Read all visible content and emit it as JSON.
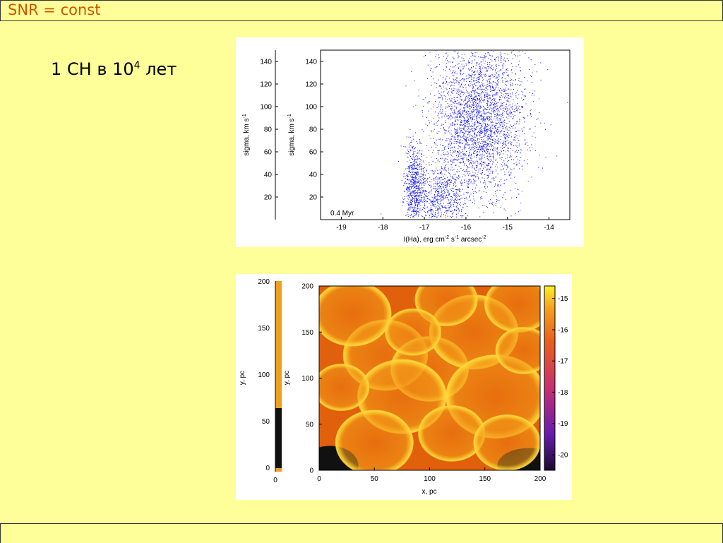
{
  "header": {
    "title": "SNR = const"
  },
  "caption": {
    "text_main": "1 СН в 10",
    "text_sup": "4",
    "text_tail": " лет"
  },
  "chart_data": [
    {
      "type": "scatter",
      "panel_label": "0.4 Myr",
      "xlabel": "I(Ha), erg cm",
      "xlabel_sup1": "-2",
      "xlabel_mid": " s",
      "xlabel_sup2": "-1",
      "xlabel_tail": " arcsec",
      "xlabel_sup3": "-2",
      "ylabel": "sigma, km s",
      "ylabel_sup": "-1",
      "xlim": [
        -19.5,
        -13.5
      ],
      "ylim": [
        0,
        150
      ],
      "xticks": [
        -19,
        -18,
        -17,
        -16,
        -15,
        -14
      ],
      "yticks": [
        20,
        40,
        60,
        80,
        100,
        120,
        140
      ],
      "color": "#1a1aff",
      "clusters": [
        {
          "x_center": -15.7,
          "x_spread": 0.55,
          "y_center": 90,
          "y_spread": 35,
          "count": 3200
        },
        {
          "x_center": -17.25,
          "x_spread": 0.12,
          "y_center": 30,
          "y_spread": 18,
          "count": 700
        },
        {
          "x_center": -16.6,
          "x_spread": 0.3,
          "y_center": 20,
          "y_spread": 15,
          "count": 700
        }
      ]
    },
    {
      "type": "heatmap",
      "xlabel": "x, pc",
      "ylabel": "y, pc",
      "xlim": [
        0,
        200
      ],
      "ylim": [
        0,
        200
      ],
      "xticks": [
        0,
        50,
        100,
        150,
        200
      ],
      "yticks": [
        0,
        50,
        100,
        150,
        200
      ],
      "colorbar_ticks": [
        -15,
        -16,
        -17,
        -18,
        -19,
        -20
      ],
      "colorbar_range": [
        -20.5,
        -14.6
      ],
      "colors": [
        "#1a0a30",
        "#6a1ab0",
        "#c83070",
        "#e8601a",
        "#f5a020",
        "#fff020"
      ],
      "bubbles": [
        {
          "cx": 60,
          "cy": 125,
          "r": 38
        },
        {
          "cx": 100,
          "cy": 110,
          "r": 35
        },
        {
          "cx": 140,
          "cy": 150,
          "r": 40
        },
        {
          "cx": 30,
          "cy": 170,
          "r": 35
        },
        {
          "cx": 75,
          "cy": 80,
          "r": 40
        },
        {
          "cx": 160,
          "cy": 80,
          "r": 45
        },
        {
          "cx": 180,
          "cy": 180,
          "r": 30
        },
        {
          "cx": 115,
          "cy": 185,
          "r": 28
        },
        {
          "cx": 50,
          "cy": 30,
          "r": 35
        },
        {
          "cx": 120,
          "cy": 40,
          "r": 30
        },
        {
          "cx": 185,
          "cy": 130,
          "r": 25
        },
        {
          "cx": 20,
          "cy": 90,
          "r": 25
        },
        {
          "cx": 85,
          "cy": 150,
          "r": 25
        },
        {
          "cx": 170,
          "cy": 30,
          "r": 30
        }
      ]
    }
  ],
  "behind_panels": {
    "scatter": {
      "ylabel": "sigma, km s",
      "ylabel_sup": "-1",
      "yticks": [
        20,
        40,
        60,
        80,
        100,
        120,
        140
      ]
    },
    "heatmap": {
      "ylabel": "y, pc",
      "yticks": [
        0,
        50,
        100,
        150,
        200
      ],
      "x0": "0"
    }
  }
}
